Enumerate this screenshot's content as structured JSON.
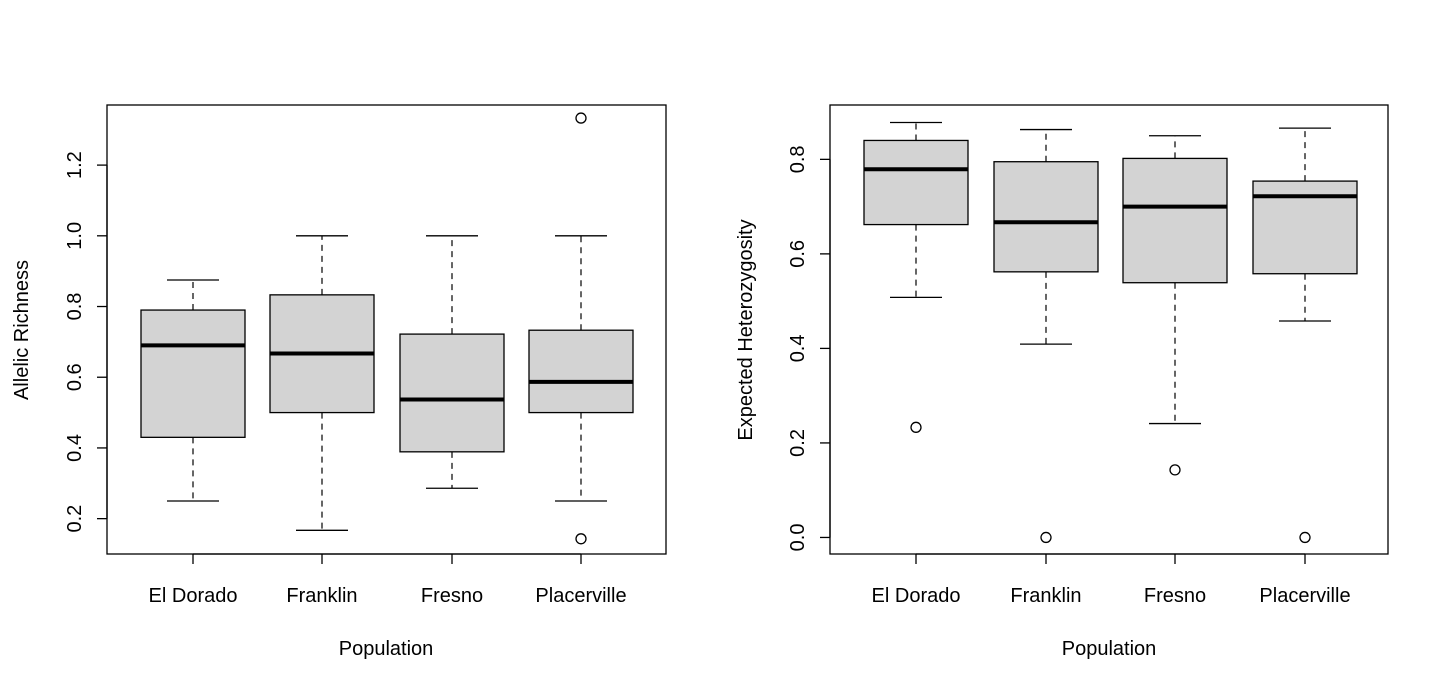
{
  "chart_data": [
    {
      "type": "boxplot",
      "xlabel": "Population",
      "ylabel": "Allelic Richness",
      "categories": [
        "El Dorado",
        "Franklin",
        "Fresno",
        "Placerville"
      ],
      "ylim": [
        0.1,
        1.37
      ],
      "yticks": [
        0.2,
        0.4,
        0.6,
        0.8,
        1.0,
        1.2
      ],
      "ytick_labels": [
        "0.2",
        "0.4",
        "0.6",
        "0.8",
        "1.0",
        "1.2"
      ],
      "boxes": [
        {
          "category": "El Dorado",
          "whisker_low": 0.25,
          "q1": 0.43,
          "median": 0.69,
          "q3": 0.79,
          "whisker_high": 0.875,
          "outliers": []
        },
        {
          "category": "Franklin",
          "whisker_low": 0.167,
          "q1": 0.5,
          "median": 0.667,
          "q3": 0.833,
          "whisker_high": 1.0,
          "outliers": []
        },
        {
          "category": "Fresno",
          "whisker_low": 0.286,
          "q1": 0.389,
          "median": 0.537,
          "q3": 0.722,
          "whisker_high": 1.0,
          "outliers": []
        },
        {
          "category": "Placerville",
          "whisker_low": 0.25,
          "q1": 0.5,
          "median": 0.587,
          "q3": 0.733,
          "whisker_high": 1.0,
          "outliers": [
            1.333,
            0.143
          ]
        }
      ]
    },
    {
      "type": "boxplot",
      "xlabel": "Population",
      "ylabel": "Expected Heterozygosity",
      "categories": [
        "El Dorado",
        "Franklin",
        "Fresno",
        "Placerville"
      ],
      "ylim": [
        -0.035,
        0.915
      ],
      "yticks": [
        0.0,
        0.2,
        0.4,
        0.6,
        0.8
      ],
      "ytick_labels": [
        "0.0",
        "0.2",
        "0.4",
        "0.6",
        "0.8"
      ],
      "boxes": [
        {
          "category": "El Dorado",
          "whisker_low": 0.508,
          "q1": 0.662,
          "median": 0.779,
          "q3": 0.84,
          "whisker_high": 0.878,
          "outliers": [
            0.233
          ]
        },
        {
          "category": "Franklin",
          "whisker_low": 0.409,
          "q1": 0.562,
          "median": 0.667,
          "q3": 0.795,
          "whisker_high": 0.863,
          "outliers": [
            0.0
          ]
        },
        {
          "category": "Fresno",
          "whisker_low": 0.241,
          "q1": 0.539,
          "median": 0.7,
          "q3": 0.802,
          "whisker_high": 0.85,
          "outliers": [
            0.143
          ]
        },
        {
          "category": "Placerville",
          "whisker_low": 0.458,
          "q1": 0.558,
          "median": 0.722,
          "q3": 0.754,
          "whisker_high": 0.866,
          "outliers": [
            0.0
          ]
        }
      ]
    }
  ]
}
